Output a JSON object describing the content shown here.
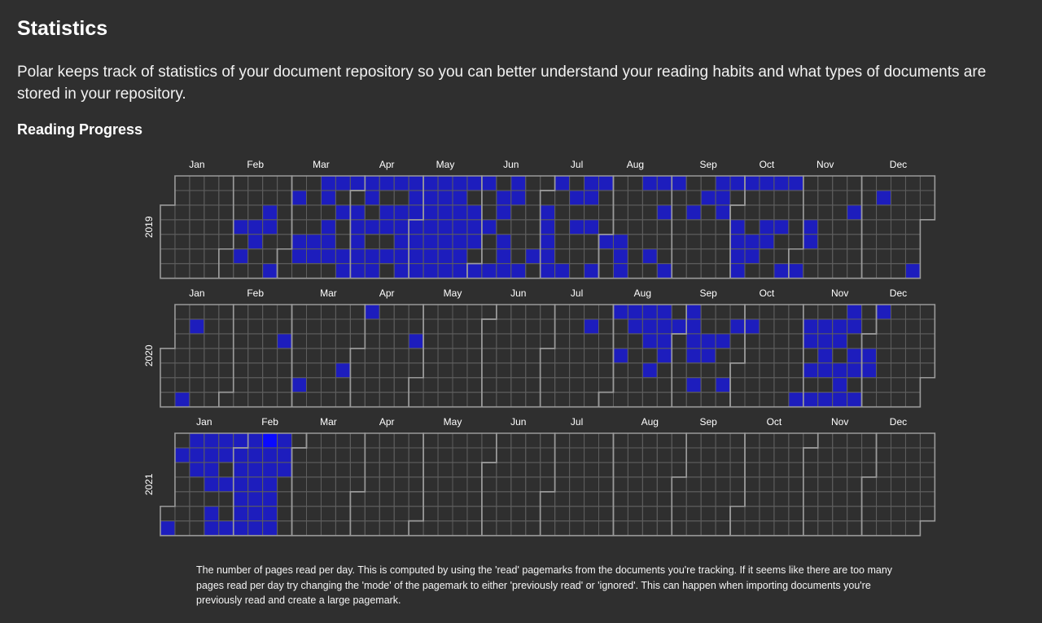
{
  "page": {
    "title": "Statistics",
    "description": "Polar keeps track of statistics of your document repository so you can better understand your reading habits and what types of documents are stored in your repository.",
    "section_title": "Reading Progress",
    "footnote": "The number of pages read per day. This is computed by using the 'read' pagemarks from the documents you're tracking. If it seems like there are too many pages read per day try changing the 'mode' of the pagemark to either 'previously read' or 'ignored'. This can happen when importing documents you're previously read and create a large pagemark."
  },
  "colors": {
    "background": "#2f2f2f",
    "cell_border": "#5e5e5e",
    "month_border": "#9a9a9a",
    "active_cell": "#1d1dbd",
    "highlight_cell": "#0a0aff",
    "text": "#ffffff"
  },
  "chart_data": {
    "type": "heatmap",
    "title": "",
    "xlabel": "",
    "ylabel": "",
    "months": [
      "Jan",
      "Feb",
      "Mar",
      "Apr",
      "May",
      "Jun",
      "Jul",
      "Aug",
      "Sep",
      "Oct",
      "Nov",
      "Dec"
    ],
    "years": [
      {
        "year": "2019",
        "start_dow": 2,
        "days_in_year": 365,
        "active_days": [
          36,
          38,
          43,
          44,
          49,
          50,
          53,
          62,
          65,
          66,
          72,
          73,
          75,
          76,
          78,
          79,
          80,
          82,
          84,
          87,
          88,
          89,
          91,
          92,
          93,
          94,
          95,
          96,
          97,
          99,
          101,
          102,
          103,
          105,
          106,
          108,
          110,
          112,
          113,
          114,
          115,
          116,
          117,
          118,
          119,
          120,
          121,
          122,
          123,
          124,
          125,
          126,
          127,
          128,
          129,
          130,
          131,
          132,
          133,
          134,
          135,
          136,
          137,
          138,
          139,
          140,
          141,
          142,
          143,
          144,
          145,
          147,
          148,
          149,
          151,
          152,
          155,
          158,
          160,
          161,
          163,
          164,
          165,
          166,
          167,
          172,
          178,
          182,
          183,
          184,
          185,
          186,
          187,
          193,
          195,
          197,
          201,
          202,
          204,
          207,
          208,
          212,
          219,
          220,
          221,
          229,
          234,
          236,
          238,
          242,
          243,
          252,
          258,
          264,
          265,
          266,
          271,
          274,
          275,
          276,
          277,
          278,
          282,
          283,
          285,
          288,
          289,
          292,
          295,
          298,
          299,
          305,
          309,
          310,
          329,
          342,
          361
        ]
      },
      {
        "year": "2020",
        "start_dow": 3,
        "days_in_year": 366,
        "active_days": [
          10,
          12,
          55,
          65,
          85,
          95,
          118,
          201,
          214,
          217,
          221,
          222,
          228,
          229,
          230,
          232,
          235,
          236,
          237,
          238,
          243,
          249,
          250,
          251,
          252,
          254,
          258,
          259,
          265,
          268,
          271,
          278,
          304,
          306,
          307,
          309,
          311,
          313,
          314,
          315,
          316,
          318,
          320,
          321,
          323,
          324,
          325,
          326,
          327,
          329,
          330,
          332,
          336,
          337,
          340
        ]
      },
      {
        "year": "2021",
        "start_dow": 5,
        "days_in_year": 365,
        "active_days": [
          1,
          3,
          9,
          10,
          11,
          16,
          17,
          18,
          19,
          21,
          22,
          23,
          24,
          26,
          29,
          30,
          31,
          32,
          33,
          34,
          35,
          36,
          37,
          38,
          39,
          40,
          41,
          42,
          43,
          44,
          45,
          46,
          47,
          48,
          49,
          50,
          51,
          52,
          53
        ],
        "highlight_days": [
          44
        ]
      }
    ]
  }
}
